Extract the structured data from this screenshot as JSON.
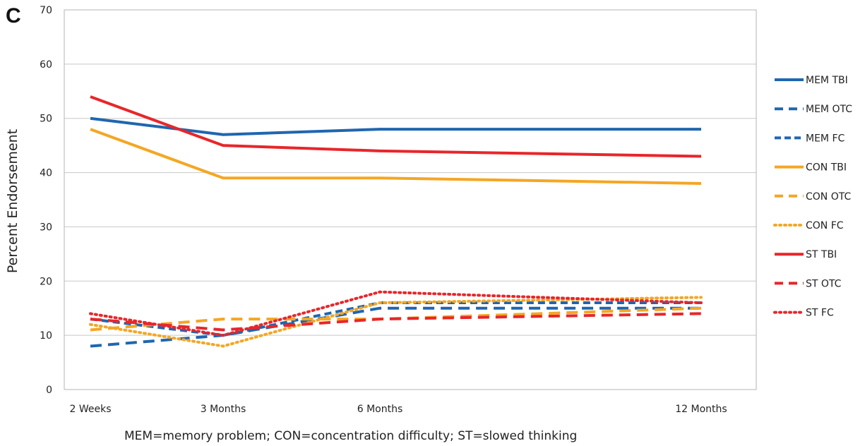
{
  "panel_label": "C",
  "footnote": "MEM=memory problem; CON=concentration difficulty; ST=slowed thinking",
  "chart_data": {
    "type": "line",
    "title": "",
    "xlabel": "",
    "ylabel": "Percent Endorsement",
    "categories": [
      "2 Weeks",
      "3 Months",
      "6 Months",
      "12 Months"
    ],
    "x_months": [
      0.5,
      3,
      6,
      12
    ],
    "ylim": [
      0,
      70
    ],
    "yticks": [
      0,
      10,
      20,
      30,
      40,
      50,
      60,
      70
    ],
    "grid": true,
    "legend_position": "right",
    "series": [
      {
        "name": "MEM TBI",
        "color": "#1f66b0",
        "style": "solid",
        "values": [
          50,
          47,
          48,
          48
        ]
      },
      {
        "name": "MEM OTC",
        "color": "#1f66b0",
        "style": "dashed",
        "values": [
          8,
          10,
          15,
          15
        ]
      },
      {
        "name": "MEM FC",
        "color": "#1f66b0",
        "style": "dashed-short",
        "values": [
          13,
          10,
          16,
          16
        ]
      },
      {
        "name": "CON TBI",
        "color": "#f5a623",
        "style": "solid",
        "values": [
          48,
          39,
          39,
          38
        ]
      },
      {
        "name": "CON OTC",
        "color": "#f5a623",
        "style": "dashed",
        "values": [
          11,
          13,
          13,
          15
        ]
      },
      {
        "name": "CON FC",
        "color": "#f5a623",
        "style": "dotted",
        "values": [
          12,
          8,
          16,
          17
        ]
      },
      {
        "name": "ST TBI",
        "color": "#e8262a",
        "style": "solid",
        "values": [
          54,
          45,
          44,
          43
        ]
      },
      {
        "name": "ST OTC",
        "color": "#e8262a",
        "style": "dashed",
        "values": [
          13,
          11,
          13,
          14
        ]
      },
      {
        "name": "ST FC",
        "color": "#e8262a",
        "style": "dotted",
        "values": [
          14,
          10,
          18,
          16
        ]
      }
    ]
  }
}
